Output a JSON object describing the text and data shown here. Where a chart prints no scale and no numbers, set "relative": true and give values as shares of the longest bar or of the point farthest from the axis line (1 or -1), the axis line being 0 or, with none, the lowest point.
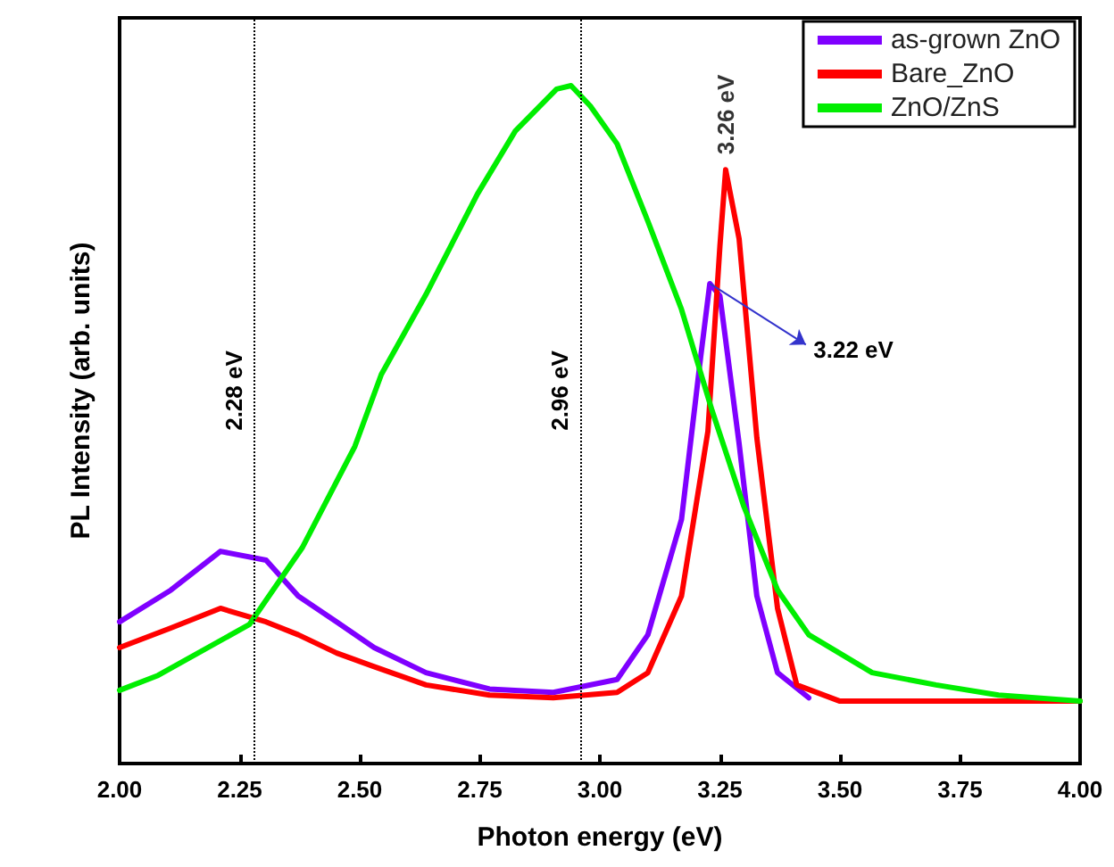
{
  "chart_data": {
    "type": "line",
    "relative": true,
    "xlabel": "Photon energy (eV)",
    "ylabel": "PL Intensity (arb. units)",
    "xlim": [
      2,
      4
    ],
    "xticks": [
      {
        "value": 2,
        "label": "2.00"
      },
      {
        "value": 2.25,
        "label": "2.25"
      },
      {
        "value": 2.5,
        "label": "2.50"
      },
      {
        "value": 2.75,
        "label": "2.75"
      },
      {
        "value": 3,
        "label": "3.00"
      },
      {
        "value": 3.25,
        "label": "3.25"
      },
      {
        "value": 3.5,
        "label": "3.50"
      },
      {
        "value": 3.75,
        "label": "3.75"
      },
      {
        "value": 4,
        "label": "4.00"
      }
    ],
    "legend": "top right",
    "marker": "none",
    "line_style": "solid",
    "grid": false,
    "series": [
      {
        "name": "as-grown ZnO",
        "color": "#7f00ff",
        "x": [
          2.0,
          2.107,
          2.21,
          2.305,
          2.372,
          2.452,
          2.53,
          2.638,
          2.77,
          2.903,
          3.036,
          3.1,
          3.17,
          3.21,
          3.229,
          3.25,
          3.29,
          3.327,
          3.37,
          3.435
        ],
        "values": [
          0.209,
          0.256,
          0.313,
          0.3,
          0.247,
          0.209,
          0.171,
          0.134,
          0.11,
          0.105,
          0.124,
          0.19,
          0.36,
          0.6,
          0.708,
          0.69,
          0.472,
          0.247,
          0.134,
          0.097
        ]
      },
      {
        "name": "Bare_ZnO",
        "color": "#ff0000",
        "x": [
          2.0,
          2.107,
          2.21,
          2.305,
          2.372,
          2.452,
          2.53,
          2.638,
          2.77,
          2.903,
          3.036,
          3.1,
          3.17,
          3.225,
          3.25,
          3.262,
          3.29,
          3.327,
          3.37,
          3.41,
          3.5,
          4.0
        ],
        "values": [
          0.171,
          0.2,
          0.229,
          0.209,
          0.19,
          0.163,
          0.143,
          0.116,
          0.101,
          0.097,
          0.105,
          0.134,
          0.247,
          0.49,
          0.763,
          0.876,
          0.774,
          0.48,
          0.229,
          0.116,
          0.092,
          0.092
        ]
      },
      {
        "name": "ZnO/ZnS",
        "color": "#00ee00",
        "x": [
          2.0,
          2.08,
          2.27,
          2.38,
          2.49,
          2.545,
          2.638,
          2.745,
          2.824,
          2.91,
          2.94,
          2.98,
          3.036,
          3.1,
          3.17,
          3.234,
          3.3,
          3.37,
          3.435,
          3.567,
          3.7,
          3.83,
          4.0
        ],
        "values": [
          0.108,
          0.13,
          0.205,
          0.318,
          0.468,
          0.574,
          0.692,
          0.84,
          0.933,
          0.995,
          1.0,
          0.97,
          0.914,
          0.8,
          0.67,
          0.52,
          0.379,
          0.256,
          0.19,
          0.134,
          0.116,
          0.101,
          0.092
        ]
      }
    ],
    "ref_lines": [
      {
        "axis": "x",
        "value": 2.28,
        "label": "2.28 eV",
        "line_style": "dotted"
      },
      {
        "axis": "x",
        "value": 2.96,
        "label": "2.96 eV",
        "line_style": "dotted"
      }
    ],
    "annotations": [
      {
        "text": "3.26 eV",
        "x": 3.262,
        "y": 0.876
      },
      {
        "text": "3.22 eV",
        "x": 3.229,
        "y": 0.708
      }
    ]
  }
}
